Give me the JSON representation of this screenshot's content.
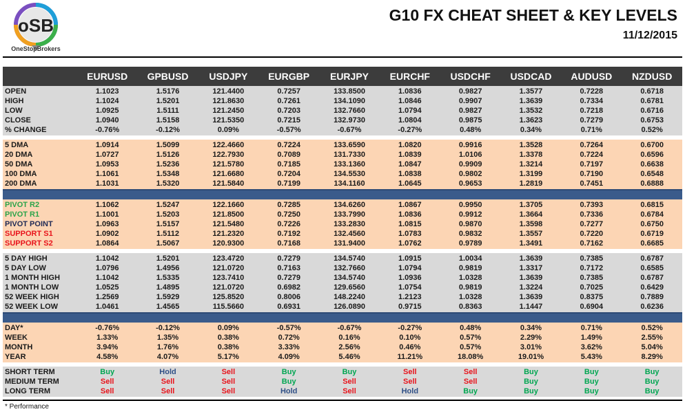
{
  "header": {
    "title": "G10 FX CHEAT SHEET & KEY LEVELS",
    "date": "11/12/2015",
    "logo_text": "OSB",
    "logo_brand": "OneStopBrokers"
  },
  "colors": {
    "header_bg": "#3c3c3c",
    "grey": "#d9d9d9",
    "peach": "#fcd5b4",
    "band": "#3a5b8b",
    "buy": "#00a651",
    "sell": "#e8141c",
    "hold": "#2f4f86",
    "pivot_r": "#2ca44a",
    "support": "#e8141c",
    "pivot_point": "#1f2a55"
  },
  "columns": [
    "EURUSD",
    "GPBUSD",
    "USDJPY",
    "EURGBP",
    "EURJPY",
    "EURCHF",
    "USDCHF",
    "USDCAD",
    "AUDUSD",
    "NZDUSD"
  ],
  "sections": [
    {
      "style": "grey",
      "rows": [
        {
          "label": "OPEN",
          "values": [
            "1.1023",
            "1.5176",
            "121.4400",
            "0.7257",
            "133.8500",
            "1.0836",
            "0.9827",
            "1.3577",
            "0.7228",
            "0.6718"
          ]
        },
        {
          "label": "HIGH",
          "values": [
            "1.1024",
            "1.5201",
            "121.8630",
            "0.7261",
            "134.1090",
            "1.0846",
            "0.9907",
            "1.3639",
            "0.7334",
            "0.6781"
          ]
        },
        {
          "label": "LOW",
          "values": [
            "1.0925",
            "1.5111",
            "121.2450",
            "0.7203",
            "132.7660",
            "1.0794",
            "0.9827",
            "1.3532",
            "0.7218",
            "0.6716"
          ]
        },
        {
          "label": "CLOSE",
          "values": [
            "1.0940",
            "1.5158",
            "121.5350",
            "0.7215",
            "132.9730",
            "1.0804",
            "0.9875",
            "1.3623",
            "0.7279",
            "0.6753"
          ]
        },
        {
          "label": "% CHANGE",
          "values": [
            "-0.76%",
            "-0.12%",
            "0.09%",
            "-0.57%",
            "-0.67%",
            "-0.27%",
            "0.48%",
            "0.34%",
            "0.71%",
            "0.52%"
          ]
        }
      ]
    },
    {
      "style": "peach",
      "rows": [
        {
          "label": "5 DMA",
          "values": [
            "1.0914",
            "1.5099",
            "122.4660",
            "0.7224",
            "133.6590",
            "1.0820",
            "0.9916",
            "1.3528",
            "0.7264",
            "0.6700"
          ]
        },
        {
          "label": "20 DMA",
          "values": [
            "1.0727",
            "1.5126",
            "122.7930",
            "0.7089",
            "131.7330",
            "1.0839",
            "1.0106",
            "1.3378",
            "0.7224",
            "0.6596"
          ]
        },
        {
          "label": "50 DMA",
          "values": [
            "1.0953",
            "1.5236",
            "121.5780",
            "0.7185",
            "133.1360",
            "1.0847",
            "0.9909",
            "1.3214",
            "0.7197",
            "0.6638"
          ]
        },
        {
          "label": "100 DMA",
          "values": [
            "1.1061",
            "1.5348",
            "121.6680",
            "0.7204",
            "134.5530",
            "1.0838",
            "0.9802",
            "1.3199",
            "0.7190",
            "0.6548"
          ]
        },
        {
          "label": "200 DMA",
          "values": [
            "1.1031",
            "1.5320",
            "121.5840",
            "0.7199",
            "134.1160",
            "1.0645",
            "0.9653",
            "1.2819",
            "0.7451",
            "0.6888"
          ]
        }
      ]
    },
    {
      "style": "peach",
      "band_before": true,
      "rows": [
        {
          "label": "PIVOT R2",
          "label_color": "pivot_r",
          "values": [
            "1.1062",
            "1.5247",
            "122.1660",
            "0.7285",
            "134.6260",
            "1.0867",
            "0.9950",
            "1.3705",
            "0.7393",
            "0.6815"
          ]
        },
        {
          "label": "PIVOT R1",
          "label_color": "pivot_r",
          "values": [
            "1.1001",
            "1.5203",
            "121.8500",
            "0.7250",
            "133.7990",
            "1.0836",
            "0.9912",
            "1.3664",
            "0.7336",
            "0.6784"
          ]
        },
        {
          "label": "PIVOT POINT",
          "label_color": "pivot_point",
          "values": [
            "1.0963",
            "1.5157",
            "121.5480",
            "0.7226",
            "133.2830",
            "1.0815",
            "0.9870",
            "1.3598",
            "0.7277",
            "0.6750"
          ]
        },
        {
          "label": "SUPPORT S1",
          "label_color": "support",
          "values": [
            "1.0902",
            "1.5112",
            "121.2320",
            "0.7192",
            "132.4560",
            "1.0783",
            "0.9832",
            "1.3557",
            "0.7220",
            "0.6719"
          ]
        },
        {
          "label": "SUPPORT S2",
          "label_color": "support",
          "values": [
            "1.0864",
            "1.5067",
            "120.9300",
            "0.7168",
            "131.9400",
            "1.0762",
            "0.9789",
            "1.3491",
            "0.7162",
            "0.6685"
          ]
        }
      ]
    },
    {
      "style": "grey",
      "rows": [
        {
          "label": "5 DAY HIGH",
          "values": [
            "1.1042",
            "1.5201",
            "123.4720",
            "0.7279",
            "134.5740",
            "1.0915",
            "1.0034",
            "1.3639",
            "0.7385",
            "0.6787"
          ]
        },
        {
          "label": "5 DAY LOW",
          "values": [
            "1.0796",
            "1.4956",
            "121.0720",
            "0.7163",
            "132.7660",
            "1.0794",
            "0.9819",
            "1.3317",
            "0.7172",
            "0.6585"
          ]
        },
        {
          "label": "1 MONTH HIGH",
          "values": [
            "1.1042",
            "1.5335",
            "123.7410",
            "0.7279",
            "134.5740",
            "1.0936",
            "1.0328",
            "1.3639",
            "0.7385",
            "0.6787"
          ]
        },
        {
          "label": "1 MONTH LOW",
          "values": [
            "1.0525",
            "1.4895",
            "121.0720",
            "0.6982",
            "129.6560",
            "1.0754",
            "0.9819",
            "1.3224",
            "0.7025",
            "0.6429"
          ]
        },
        {
          "label": "52 WEEK HIGH",
          "values": [
            "1.2569",
            "1.5929",
            "125.8520",
            "0.8006",
            "148.2240",
            "1.2123",
            "1.0328",
            "1.3639",
            "0.8375",
            "0.7889"
          ]
        },
        {
          "label": "52 WEEK LOW",
          "values": [
            "1.0461",
            "1.4565",
            "115.5660",
            "0.6931",
            "126.0890",
            "0.9715",
            "0.8363",
            "1.1447",
            "0.6904",
            "0.6236"
          ]
        }
      ]
    },
    {
      "style": "peach",
      "band_before": true,
      "rows": [
        {
          "label": "DAY*",
          "values": [
            "-0.76%",
            "-0.12%",
            "0.09%",
            "-0.57%",
            "-0.67%",
            "-0.27%",
            "0.48%",
            "0.34%",
            "0.71%",
            "0.52%"
          ]
        },
        {
          "label": "WEEK",
          "values": [
            "1.33%",
            "1.35%",
            "0.38%",
            "0.72%",
            "0.16%",
            "0.10%",
            "0.57%",
            "2.29%",
            "1.49%",
            "2.55%"
          ]
        },
        {
          "label": "MONTH",
          "values": [
            "3.94%",
            "1.76%",
            "0.38%",
            "3.33%",
            "2.56%",
            "0.46%",
            "0.57%",
            "3.01%",
            "3.62%",
            "5.04%"
          ]
        },
        {
          "label": "YEAR",
          "values": [
            "4.58%",
            "4.07%",
            "5.17%",
            "4.09%",
            "5.46%",
            "11.21%",
            "18.08%",
            "19.01%",
            "5.43%",
            "8.29%"
          ]
        }
      ]
    },
    {
      "style": "grey",
      "signals": true,
      "rows": [
        {
          "label": "SHORT TERM",
          "values": [
            "Buy",
            "Hold",
            "Sell",
            "Buy",
            "Buy",
            "Sell",
            "Sell",
            "Buy",
            "Buy",
            "Buy"
          ]
        },
        {
          "label": "MEDIUM TERM",
          "values": [
            "Sell",
            "Sell",
            "Sell",
            "Buy",
            "Sell",
            "Sell",
            "Sell",
            "Buy",
            "Buy",
            "Buy"
          ]
        },
        {
          "label": "LONG TERM",
          "values": [
            "Sell",
            "Sell",
            "Sell",
            "Hold",
            "Sell",
            "Hold",
            "Buy",
            "Buy",
            "Buy",
            "Buy"
          ]
        }
      ]
    }
  ],
  "footnote": "* Performance"
}
